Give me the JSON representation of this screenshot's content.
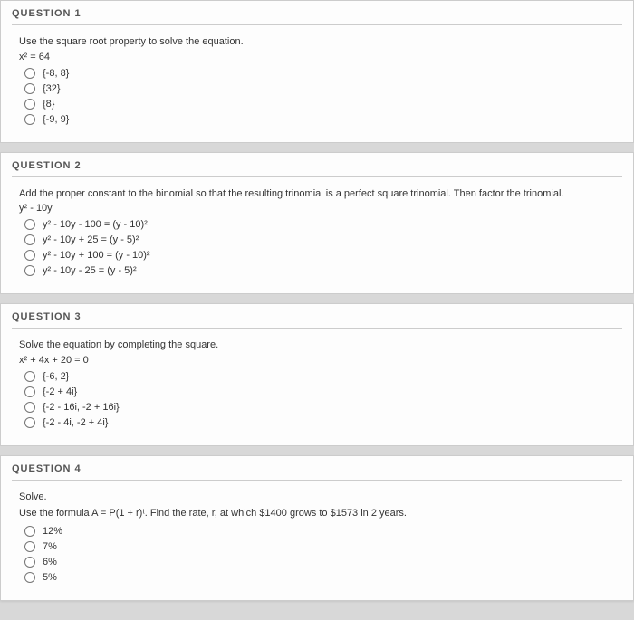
{
  "q1": {
    "title": "QUESTION 1",
    "prompt": "Use the square root property to solve the equation.",
    "expr": "x² = 64",
    "opts": [
      "{-8, 8}",
      "{32}",
      "{8}",
      "{-9, 9}"
    ]
  },
  "q2": {
    "title": "QUESTION 2",
    "prompt": "Add the proper constant to the binomial so that the resulting trinomial is a perfect square trinomial. Then factor the trinomial.",
    "expr": "y² - 10y",
    "opts": [
      "y² - 10y - 100 = (y - 10)²",
      "y² - 10y + 25 = (y - 5)²",
      "y² - 10y + 100 = (y - 10)²",
      "y² - 10y - 25 = (y - 5)²"
    ]
  },
  "q3": {
    "title": "QUESTION 3",
    "prompt": "Solve the equation by completing the square.",
    "expr": "x² + 4x + 20 = 0",
    "opts": [
      "{-6, 2}",
      "{-2 + 4i}",
      "{-2 - 16i, -2 + 16i}",
      "{-2 - 4i, -2 + 4i}"
    ]
  },
  "q4": {
    "title": "QUESTION 4",
    "prompt1": "Solve.",
    "prompt2": "Use the formula A = P(1 + r)ᵗ. Find the rate, r, at which $1400 grows to $1573 in 2 years.",
    "opts": [
      "12%",
      "7%",
      "6%",
      "5%"
    ]
  }
}
